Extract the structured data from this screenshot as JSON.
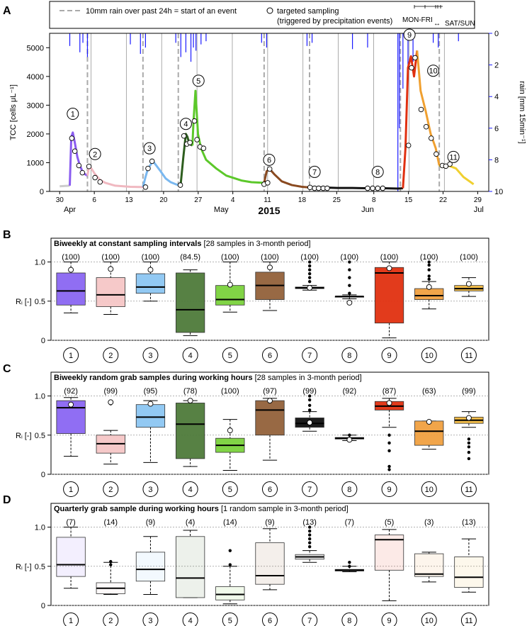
{
  "chart_data": [
    {
      "panel": "A",
      "type": "line",
      "legend": {
        "dashed_line": "10mm rain over past 24h = start of an event",
        "circle_marker": "targeted sampling",
        "circle_marker_sub": "(triggered by precipitation events)",
        "weekday": "MON-FRI",
        "weekend": "SAT/SUN"
      },
      "ylabel": "TCC [cells μL⁻¹]",
      "ylabel_right": "rain [mm 15min⁻¹]",
      "xlabel": "2015",
      "ylim": [
        0,
        5500
      ],
      "yticks": [
        0,
        1000,
        2000,
        3000,
        4000,
        5000
      ],
      "rain_ylim": [
        0,
        10
      ],
      "rain_ticks": [
        0,
        2,
        4,
        6,
        8,
        10
      ],
      "day_ticks": [
        "30",
        "6",
        "13",
        "20",
        "27",
        "4",
        "11",
        "18",
        "25",
        "8",
        "15",
        "22",
        "29"
      ],
      "month_labels": [
        "Apr",
        "May",
        "Jun",
        "Jul"
      ],
      "event_labels": [
        "1",
        "2",
        "3",
        "4",
        "5",
        "6",
        "7",
        "8",
        "9",
        "10",
        "11"
      ],
      "series": [
        {
          "name": "pre",
          "color": "#cccccc",
          "x": [
            0,
            2
          ],
          "y": [
            180,
            200
          ]
        },
        {
          "name": "event1",
          "color": "#8a5cf0",
          "x": [
            2,
            2.3,
            2.6,
            3,
            3.5,
            4,
            4.5,
            5,
            5.5
          ],
          "y": [
            200,
            1900,
            2050,
            1700,
            1200,
            900,
            700,
            600,
            550
          ]
        },
        {
          "name": "event2",
          "color": "#f0b8c0",
          "x": [
            5.5,
            5.8,
            6.2,
            7,
            8,
            9,
            11,
            14,
            16.5
          ],
          "y": [
            550,
            860,
            820,
            600,
            400,
            300,
            200,
            160,
            150
          ]
        },
        {
          "name": "event3",
          "color": "#7ab8f0",
          "x": [
            16.5,
            17,
            17.5,
            18.5,
            20,
            21,
            22,
            23,
            23.5
          ],
          "y": [
            150,
            500,
            800,
            1050,
            700,
            450,
            320,
            250,
            220
          ]
        },
        {
          "name": "event4",
          "color": "#2d5e1e",
          "x": [
            23.5,
            24,
            24.5,
            25,
            25.3,
            25.7,
            26.3
          ],
          "y": [
            220,
            300,
            1200,
            2000,
            1900,
            1650,
            1600
          ]
        },
        {
          "name": "event5",
          "color": "#5cc82a",
          "x": [
            26.3,
            26.5,
            26.9,
            27.4,
            28,
            29,
            31,
            33,
            36,
            38,
            40.5
          ],
          "y": [
            1600,
            2400,
            3500,
            2000,
            1500,
            1100,
            800,
            550,
            380,
            320,
            300
          ]
        },
        {
          "name": "event6",
          "color": "#8a4a20",
          "x": [
            40.5,
            41,
            41.6,
            42.5,
            44,
            46,
            48,
            49.5
          ],
          "y": [
            300,
            700,
            780,
            600,
            350,
            220,
            160,
            140
          ]
        },
        {
          "name": "event7",
          "color": "#111111",
          "x": [
            49.5,
            52,
            55,
            58,
            61
          ],
          "y": [
            140,
            140,
            120,
            120,
            110
          ]
        },
        {
          "name": "event8",
          "color": "#111111",
          "x": [
            61,
            64,
            67,
            68
          ],
          "y": [
            110,
            110,
            100,
            110
          ]
        },
        {
          "name": "event9",
          "color": "#e03010",
          "x": [
            68,
            68.5,
            69,
            69.6,
            70.2,
            70.8
          ],
          "y": [
            110,
            1500,
            4300,
            4700,
            4000,
            4900
          ]
        },
        {
          "name": "event10",
          "color": "#f0a030",
          "x": [
            70.8,
            71.5,
            72.5,
            73.5,
            74.5,
            75.2
          ],
          "y": [
            4900,
            3500,
            2800,
            2000,
            1500,
            900
          ]
        },
        {
          "name": "event11",
          "color": "#f0d030",
          "x": [
            75.2,
            76,
            77,
            78.5,
            80,
            82
          ],
          "y": [
            900,
            850,
            900,
            800,
            500,
            250
          ]
        }
      ],
      "samples_x": [
        2.4,
        3,
        3.8,
        4.5,
        5.8,
        7,
        8,
        17,
        17.5,
        18.3,
        23.9,
        24.6,
        25.2,
        25.8,
        26.7,
        27.2,
        27.8,
        28.5,
        40.5,
        41.2,
        41.6,
        49.6,
        50.5,
        51.3,
        52.2,
        53,
        61,
        62,
        63,
        64,
        69.1,
        69.7,
        70.4,
        71.6,
        72.6,
        73.6,
        74.6,
        75.8,
        76.5,
        77.3
      ],
      "samples_y": [
        1850,
        1400,
        900,
        650,
        870,
        480,
        330,
        150,
        800,
        1050,
        220,
        1930,
        1650,
        1700,
        2450,
        1800,
        1550,
        1500,
        250,
        300,
        780,
        140,
        110,
        110,
        110,
        110,
        110,
        110,
        110,
        110,
        1600,
        4300,
        4650,
        2850,
        2250,
        1850,
        1300,
        900,
        880,
        950
      ],
      "rain_x": [
        2,
        4,
        4.6,
        5.5,
        14,
        16,
        17,
        23,
        24,
        25,
        26,
        26.5,
        27,
        28,
        29,
        40,
        41,
        49,
        50,
        58,
        61,
        67,
        67.3,
        68,
        69,
        70,
        74,
        75,
        79
      ],
      "rain_mm": [
        0.8,
        1.2,
        0.6,
        1.5,
        0.7,
        1.3,
        0.9,
        0.6,
        1.5,
        1.2,
        1.8,
        0.9,
        1.1,
        0.7,
        0.5,
        0.6,
        0.9,
        0.8,
        0.6,
        1.0,
        0.9,
        10,
        6,
        3.5,
        2.0,
        1.8,
        0.6,
        0.9,
        0.5
      ],
      "event_starts_x": [
        5.5,
        16.5,
        23.5,
        40.5,
        49.5,
        67.5,
        75.2
      ],
      "weekend_lines_x": [
        6.2,
        13.2,
        20.2,
        27.2,
        34.2,
        41.2,
        48.2,
        55.2,
        62.2,
        69.2,
        76.2
      ]
    },
    {
      "panel": "B",
      "type": "box",
      "title": "Biweekly at constant sampling intervals",
      "subtitle": "[28 samples in 3-month period]",
      "ylabel": "Rᵢ [-]",
      "ylim": [
        0,
        1.05
      ],
      "yticks": [
        0,
        0.5,
        1.0
      ],
      "ytick_labels": [
        "0",
        "0.5",
        "1.0"
      ],
      "categories": [
        "1",
        "2",
        "3",
        "4",
        "5",
        "6",
        "7",
        "8",
        "9",
        "10",
        "11"
      ],
      "counts": [
        "(100)",
        "(100)",
        "(100)",
        "(84.5)",
        "(100)",
        "(100)",
        "(100)",
        "(100)",
        "(100)",
        "(100)",
        "(100)"
      ],
      "colors": [
        "#8a66f2",
        "#f6c6c6",
        "#8cc6f2",
        "#4e7a3a",
        "#7ad23c",
        "#92613a",
        "#111111",
        "#555555",
        "#e03010",
        "#f0a040",
        "#f0b840"
      ],
      "fill_alpha": 0.95,
      "min": [
        0.35,
        0.33,
        0.5,
        0.06,
        0.36,
        0.38,
        0.64,
        0.53,
        0.03,
        0.4,
        0.56
      ],
      "q1": [
        0.45,
        0.43,
        0.6,
        0.1,
        0.45,
        0.52,
        0.66,
        0.55,
        0.22,
        0.52,
        0.63
      ],
      "median": [
        0.63,
        0.58,
        0.68,
        0.39,
        0.52,
        0.7,
        0.67,
        0.56,
        0.86,
        0.57,
        0.66
      ],
      "q3": [
        0.86,
        0.8,
        0.85,
        0.86,
        0.7,
        0.87,
        0.68,
        0.56,
        0.93,
        0.66,
        0.7
      ],
      "max": [
        1.0,
        1.0,
        1.0,
        0.9,
        1.0,
        1.0,
        0.7,
        0.58,
        1.0,
        0.75,
        0.8
      ],
      "outliers": [
        [],
        [],
        [],
        [],
        [],
        [],
        [
          0.75,
          0.8,
          0.85,
          0.9,
          0.95,
          1.0
        ],
        [
          0.48,
          0.6,
          0.7,
          0.8,
          0.9,
          1.0
        ],
        [],
        [
          0.78,
          0.82,
          0.9,
          0.96,
          1.0
        ],
        []
      ],
      "targeted": [
        0.9,
        0.91,
        0.9,
        null,
        0.71,
        0.93,
        0.67,
        0.48,
        0.92,
        0.68,
        0.72
      ]
    },
    {
      "panel": "C",
      "type": "box",
      "title": "Biweekly random grab samples during working hours",
      "subtitle": "[28 samples in 3-month period]",
      "ylabel": "Rᵢ [-]",
      "ylim": [
        0,
        1.05
      ],
      "yticks": [
        0,
        0.5,
        1.0
      ],
      "ytick_labels": [
        "0",
        "0.5",
        "1.0"
      ],
      "categories": [
        "1",
        "2",
        "3",
        "4",
        "5",
        "6",
        "7",
        "8",
        "9",
        "10",
        "11"
      ],
      "counts": [
        "(92)",
        "(99)",
        "(95)",
        "(78)",
        "(100)",
        "(97)",
        "(99)",
        "(92)",
        "(87)",
        "(63)",
        "(99)"
      ],
      "colors": [
        "#8a66f2",
        "#f6c6c6",
        "#8cc6f2",
        "#4e7a3a",
        "#7ad23c",
        "#92613a",
        "#111111",
        "#555555",
        "#e03010",
        "#f0a040",
        "#f0b840"
      ],
      "fill_alpha": 0.95,
      "min": [
        0.23,
        0.13,
        0.15,
        0.1,
        0.05,
        0.18,
        0.55,
        0.43,
        0.6,
        0.32,
        0.6
      ],
      "q1": [
        0.52,
        0.27,
        0.6,
        0.2,
        0.28,
        0.5,
        0.6,
        0.45,
        0.82,
        0.37,
        0.65
      ],
      "median": [
        0.85,
        0.39,
        0.73,
        0.64,
        0.37,
        0.82,
        0.65,
        0.46,
        0.87,
        0.55,
        0.69
      ],
      "q3": [
        0.94,
        0.5,
        0.89,
        0.91,
        0.46,
        0.94,
        0.72,
        0.47,
        0.93,
        0.68,
        0.73
      ],
      "max": [
        0.98,
        0.56,
        0.94,
        0.94,
        0.7,
        0.97,
        0.8,
        0.5,
        0.97,
        0.68,
        0.8
      ],
      "outliers": [
        [],
        [
          0.9
        ],
        [],
        [],
        [],
        [],
        [
          0.82,
          0.88,
          0.95,
          1.0
        ],
        [
          0.43,
          0.5
        ],
        [
          0.06,
          0.1,
          0.3,
          0.4,
          0.5
        ],
        [],
        [
          0.2,
          0.28,
          0.35,
          0.4,
          0.45
        ]
      ],
      "targeted": [
        0.89,
        0.92,
        0.9,
        0.94,
        0.56,
        0.94,
        0.66,
        0.44,
        0.91,
        0.67,
        0.72
      ]
    },
    {
      "panel": "D",
      "type": "box",
      "title": "Quarterly grab sample during working hours",
      "subtitle": "[1 random sample in 3-month period]",
      "ylabel": "Rᵢ [-]",
      "ylim": [
        0,
        1.05
      ],
      "yticks": [
        0,
        0.5,
        1.0
      ],
      "ytick_labels": [
        "0",
        "0.5",
        "1.0"
      ],
      "categories": [
        "1",
        "2",
        "3",
        "4",
        "5",
        "6",
        "7",
        "8",
        "9",
        "10",
        "11"
      ],
      "counts": [
        "(7)",
        "(14)",
        "(9)",
        "(4)",
        "(14)",
        "(9)",
        "(13)",
        "(7)",
        "(5)",
        "(3)",
        "(13)"
      ],
      "colors": [
        "#8a66f2",
        "#f6c6c6",
        "#8cc6f2",
        "#4e7a3a",
        "#7ad23c",
        "#92613a",
        "#111111",
        "#555555",
        "#e03010",
        "#f0a040",
        "#f0b840"
      ],
      "fill_alpha": 0.1,
      "min": [
        0.22,
        0.14,
        0.14,
        0.1,
        0.02,
        0.2,
        0.55,
        0.43,
        0.06,
        0.3,
        0.17
      ],
      "q1": [
        0.37,
        0.15,
        0.31,
        0.1,
        0.07,
        0.27,
        0.59,
        0.44,
        0.45,
        0.37,
        0.23
      ],
      "median": [
        0.52,
        0.22,
        0.46,
        0.35,
        0.14,
        0.38,
        0.62,
        0.45,
        0.84,
        0.4,
        0.36
      ],
      "q3": [
        0.87,
        0.29,
        0.68,
        0.88,
        0.24,
        0.8,
        0.65,
        0.46,
        0.9,
        0.66,
        0.62
      ],
      "max": [
        1.0,
        0.55,
        0.88,
        0.96,
        0.5,
        0.98,
        0.7,
        0.5,
        0.97,
        0.68,
        0.85
      ],
      "outliers": [
        [],
        [
          0.52,
          0.56
        ],
        [],
        [],
        [
          0.52,
          0.7
        ],
        [],
        [
          0.75,
          0.8,
          0.85,
          0.9,
          0.95,
          1.0
        ],
        [
          0.5,
          0.55
        ],
        [],
        [],
        []
      ],
      "targeted": [
        null,
        null,
        null,
        null,
        null,
        null,
        null,
        null,
        null,
        null,
        null
      ]
    }
  ]
}
